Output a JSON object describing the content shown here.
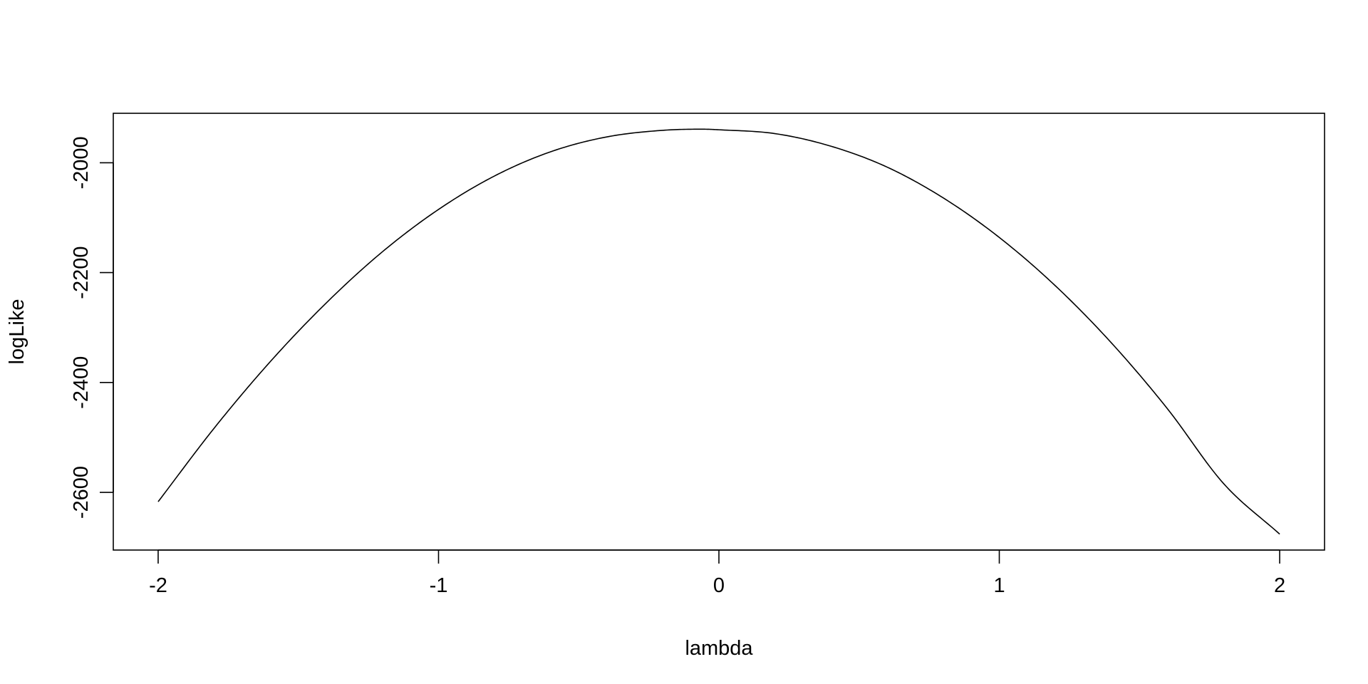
{
  "chart_data": {
    "type": "line",
    "title": "",
    "xlabel": "lambda",
    "ylabel": "logLike",
    "xlim": [
      -2.16,
      2.16
    ],
    "ylim": [
      -2705,
      -1910
    ],
    "x_ticks": [
      -2,
      -1,
      0,
      1,
      2
    ],
    "x_tick_labels": [
      "-2",
      "-1",
      "0",
      "1",
      "2"
    ],
    "y_ticks": [
      -2000,
      -2200,
      -2400,
      -2600
    ],
    "y_tick_labels": [
      "-2000",
      "-2200",
      "-2400",
      "-2600"
    ],
    "grid": false,
    "legend": "none",
    "line_color": "#000000",
    "series": [
      {
        "x": [
          -2.0,
          -1.8,
          -1.6,
          -1.4,
          -1.2,
          -1.0,
          -0.8,
          -0.6,
          -0.4,
          -0.2,
          -0.05,
          0.0,
          0.2,
          0.4,
          0.6,
          0.8,
          1.0,
          1.2,
          1.4,
          1.6,
          1.8,
          2.0
        ],
        "values": [
          -2617,
          -2483,
          -2362,
          -2255,
          -2162,
          -2085,
          -2024,
          -1980,
          -1953,
          -1941,
          -1939,
          -1940,
          -1947,
          -1970,
          -2008,
          -2064,
          -2136,
          -2224,
          -2328,
          -2448,
          -2584,
          -2676
        ]
      }
    ]
  }
}
